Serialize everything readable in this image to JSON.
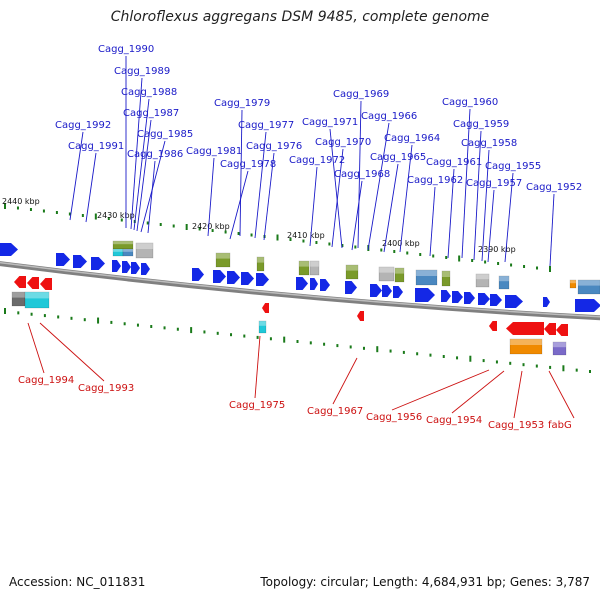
{
  "title": "Chloroflexus aggregans DSM 9485, complete genome",
  "footer": {
    "accession": "Accession: NC_011831",
    "summary": "Topology: circular; Length: 4,684,931 bp; Genes: 3,787"
  },
  "colors": {
    "forward_gene": "#1428e6",
    "reverse_gene": "#ee1111",
    "top_label": "#1a1ac8",
    "bottom_label": "#cc1010",
    "backbone": "#808080",
    "tick_mark": "#1a7a1a",
    "olive_feature": "#7a9a2a",
    "grey_feature": "#b4b4b4",
    "steelblue_feature": "#4a88c0",
    "cyan_feature": "#20c8d8",
    "orange_feature": "#f08a00",
    "purple_feature": "#7a6ac8"
  },
  "scale_ticks": [
    "2440 kbp",
    "2430 kbp",
    "2420 kbp",
    "2410 kbp",
    "2400 kbp",
    "2390 kbp"
  ],
  "top_labels": [
    "Cagg_1990",
    "Cagg_1989",
    "Cagg_1988",
    "Cagg_1987",
    "Cagg_1985",
    "Cagg_1986",
    "Cagg_1992",
    "Cagg_1991",
    "Cagg_1979",
    "Cagg_1977",
    "Cagg_1981",
    "Cagg_1976",
    "Cagg_1978",
    "Cagg_1969",
    "Cagg_1971",
    "Cagg_1966",
    "Cagg_1970",
    "Cagg_1972",
    "Cagg_1968",
    "Cagg_1964",
    "Cagg_1965",
    "Cagg_1960",
    "Cagg_1959",
    "Cagg_1958",
    "Cagg_1961",
    "Cagg_1962",
    "Cagg_1955",
    "Cagg_1957",
    "Cagg_1952"
  ],
  "bottom_labels": [
    "Cagg_1994",
    "Cagg_1993",
    "Cagg_1975",
    "Cagg_1967",
    "Cagg_1956",
    "Cagg_1954",
    "Cagg_1953",
    "fabG"
  ]
}
